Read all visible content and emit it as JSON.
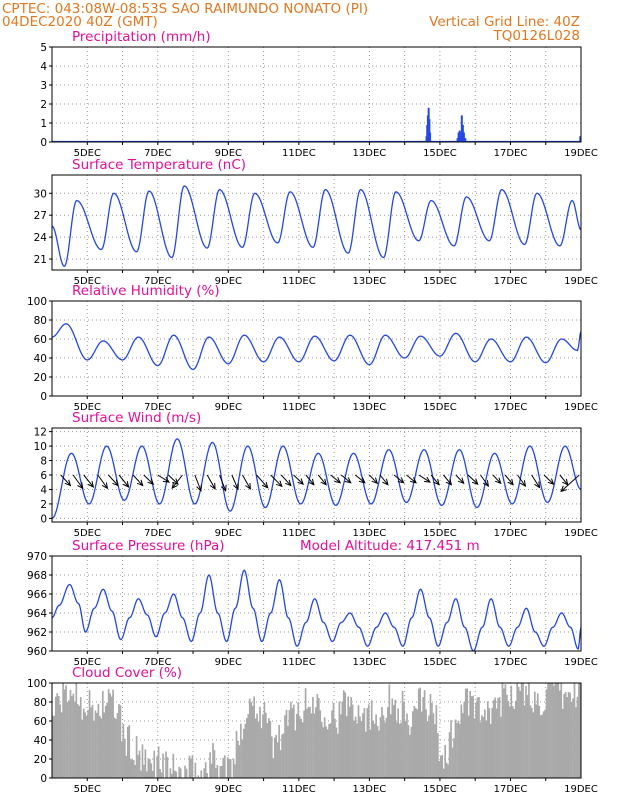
{
  "header": {
    "line1_left": "CPTEC:   043:08W-08:53S  SAO RAIMUNDO NONATO (PI)",
    "line2_left": "04DEC2020 40Z (GMT)",
    "line2_right": "Vertical Grid Line: 40Z",
    "line3_right": "TQ0126L028"
  },
  "colors": {
    "header": "#e07820",
    "title": "#e0109a",
    "series": "#2448e0",
    "cloud": "#a9a9a9",
    "grid": "#9a9a9a"
  },
  "chart_data": [
    {
      "id": "precip",
      "type": "bar",
      "title": "Precipitation (mm/h)",
      "ylim": [
        0,
        5
      ],
      "yticks": [
        "0",
        "1",
        "2",
        "3",
        "4",
        "5"
      ],
      "xticks": [
        "5DEC",
        "7DEC",
        "9DEC",
        "11DEC",
        "13DEC",
        "15DEC",
        "17DEC",
        "19DEC"
      ],
      "x_range_days": [
        4.0,
        19.0
      ],
      "points": [
        [
          14.62,
          0.3
        ],
        [
          14.64,
          0.9
        ],
        [
          14.66,
          1.4
        ],
        [
          14.68,
          1.8
        ],
        [
          14.7,
          1.2
        ],
        [
          14.72,
          0.5
        ],
        [
          15.5,
          0.2
        ],
        [
          15.53,
          0.5
        ],
        [
          15.56,
          0.6
        ],
        [
          15.59,
          0.5
        ],
        [
          15.62,
          1.4
        ],
        [
          15.65,
          0.9
        ],
        [
          15.68,
          0.5
        ],
        [
          15.72,
          0.2
        ],
        [
          18.98,
          0.3
        ]
      ]
    },
    {
      "id": "temp",
      "type": "line",
      "title": "Surface Temperature (nC)",
      "ylim": [
        19.5,
        32.5
      ],
      "yticks": [
        "21",
        "24",
        "27",
        "30"
      ],
      "ytick_values": [
        21,
        24,
        27,
        30
      ],
      "xticks": [
        "5DEC",
        "7DEC",
        "9DEC",
        "11DEC",
        "13DEC",
        "15DEC",
        "17DEC",
        "19DEC"
      ],
      "x_range_days": [
        4.0,
        19.0
      ],
      "minima": [
        [
          4.0,
          25.5
        ],
        [
          4.35,
          20.0
        ],
        [
          5.4,
          22.3
        ],
        [
          6.4,
          22.0
        ],
        [
          7.4,
          21.2
        ],
        [
          8.4,
          22.5
        ],
        [
          9.4,
          22.6
        ],
        [
          10.4,
          23.2
        ],
        [
          11.4,
          22.6
        ],
        [
          12.4,
          21.8
        ],
        [
          13.4,
          21.2
        ],
        [
          14.4,
          23.5
        ],
        [
          15.4,
          22.8
        ],
        [
          16.4,
          23.5
        ],
        [
          17.4,
          23.0
        ],
        [
          18.4,
          22.8
        ],
        [
          19.0,
          25.0
        ]
      ],
      "maxima": [
        [
          4.7,
          29.0
        ],
        [
          5.75,
          30.0
        ],
        [
          6.75,
          30.3
        ],
        [
          7.75,
          31.0
        ],
        [
          8.75,
          30.5
        ],
        [
          9.75,
          30.0
        ],
        [
          10.75,
          30.2
        ],
        [
          11.75,
          30.5
        ],
        [
          12.75,
          30.5
        ],
        [
          13.75,
          30.2
        ],
        [
          14.75,
          29.0
        ],
        [
          15.75,
          29.5
        ],
        [
          16.75,
          30.5
        ],
        [
          17.75,
          30.0
        ],
        [
          18.75,
          29.0
        ]
      ]
    },
    {
      "id": "rh",
      "type": "line",
      "title": "Relative Humidity (%)",
      "ylim": [
        0,
        100
      ],
      "yticks": [
        "0",
        "20",
        "40",
        "60",
        "80",
        "100"
      ],
      "ytick_values": [
        0,
        20,
        40,
        60,
        80,
        100
      ],
      "xticks": [
        "5DEC",
        "7DEC",
        "9DEC",
        "11DEC",
        "13DEC",
        "15DEC",
        "17DEC",
        "19DEC"
      ],
      "x_range_days": [
        4.0,
        19.0
      ],
      "maxima": [
        [
          4.4,
          76.0
        ],
        [
          5.45,
          58.0
        ],
        [
          6.45,
          62.0
        ],
        [
          7.45,
          64.0
        ],
        [
          8.45,
          62.0
        ],
        [
          9.45,
          64.0
        ],
        [
          10.45,
          62.0
        ],
        [
          11.45,
          63.0
        ],
        [
          12.45,
          64.0
        ],
        [
          13.45,
          64.0
        ],
        [
          14.45,
          63.0
        ],
        [
          15.45,
          66.0
        ],
        [
          16.45,
          60.0
        ],
        [
          17.45,
          62.0
        ],
        [
          18.45,
          60.0
        ],
        [
          19.0,
          68.0
        ]
      ],
      "minima": [
        [
          4.0,
          62.0
        ],
        [
          5.0,
          38.0
        ],
        [
          6.0,
          38.0
        ],
        [
          7.0,
          32.0
        ],
        [
          8.0,
          28.0
        ],
        [
          9.0,
          34.0
        ],
        [
          10.0,
          36.0
        ],
        [
          11.0,
          36.0
        ],
        [
          12.0,
          37.0
        ],
        [
          13.0,
          33.0
        ],
        [
          14.0,
          40.0
        ],
        [
          15.0,
          42.0
        ],
        [
          16.0,
          36.0
        ],
        [
          17.0,
          36.0
        ],
        [
          18.0,
          35.0
        ],
        [
          18.9,
          48.0
        ]
      ]
    },
    {
      "id": "wind",
      "type": "line",
      "title": "Surface Wind (m/s)",
      "ylim": [
        -0.5,
        12.5
      ],
      "yticks": [
        "0",
        "2",
        "4",
        "6",
        "8",
        "10",
        "12"
      ],
      "ytick_values": [
        0,
        2,
        4,
        6,
        8,
        10,
        12
      ],
      "xticks": [
        "5DEC",
        "7DEC",
        "9DEC",
        "11DEC",
        "13DEC",
        "15DEC",
        "17DEC",
        "19DEC"
      ],
      "x_range_days": [
        4.0,
        19.0
      ],
      "maxima": [
        [
          4.55,
          9.0
        ],
        [
          5.55,
          10.0
        ],
        [
          6.55,
          10.0
        ],
        [
          7.55,
          11.0
        ],
        [
          8.55,
          10.5
        ],
        [
          9.55,
          10.0
        ],
        [
          10.55,
          10.0
        ],
        [
          11.55,
          9.0
        ],
        [
          12.55,
          9.0
        ],
        [
          13.55,
          9.5
        ],
        [
          14.55,
          9.5
        ],
        [
          15.55,
          9.5
        ],
        [
          16.55,
          9.0
        ],
        [
          17.55,
          10.0
        ],
        [
          18.55,
          10.0
        ]
      ],
      "minima": [
        [
          4.0,
          0.0
        ],
        [
          5.05,
          2.0
        ],
        [
          6.05,
          2.5
        ],
        [
          7.05,
          2.0
        ],
        [
          8.05,
          2.0
        ],
        [
          9.05,
          1.0
        ],
        [
          10.05,
          1.5
        ],
        [
          11.05,
          2.0
        ],
        [
          12.05,
          1.8
        ],
        [
          13.05,
          2.0
        ],
        [
          14.05,
          2.2
        ],
        [
          15.05,
          1.8
        ],
        [
          16.05,
          1.5
        ],
        [
          17.05,
          2.0
        ],
        [
          18.05,
          2.2
        ],
        [
          19.0,
          4.0
        ]
      ],
      "vectors": [
        [
          4.25,
          2.1,
          0.3
        ],
        [
          4.6,
          2.1,
          0.5
        ],
        [
          4.9,
          2.1,
          0.4
        ],
        [
          5.3,
          2.1,
          0.5
        ],
        [
          5.6,
          2.1,
          0.3
        ],
        [
          5.9,
          2.1,
          0.4
        ],
        [
          6.3,
          2.1,
          0.3
        ],
        [
          6.6,
          2.1,
          0.2
        ],
        [
          7.0,
          2.2,
          0.1
        ],
        [
          7.3,
          2.1,
          0.2
        ],
        [
          7.7,
          1.0,
          0.5
        ],
        [
          8.05,
          1.9,
          0.6
        ],
        [
          8.4,
          2.0,
          0.5
        ],
        [
          8.75,
          1.9,
          0.6
        ],
        [
          9.1,
          1.9,
          0.5
        ],
        [
          9.4,
          2.0,
          0.5
        ],
        [
          9.8,
          2.2,
          0.5
        ],
        [
          10.2,
          2.2,
          0.4
        ],
        [
          10.5,
          2.1,
          0.3
        ],
        [
          10.85,
          2.1,
          0.2
        ],
        [
          11.2,
          2.0,
          0.2
        ],
        [
          11.55,
          2.0,
          0.2
        ],
        [
          11.9,
          2.1,
          0.1
        ],
        [
          12.2,
          2.1,
          0.1
        ],
        [
          12.6,
          2.1,
          0.1
        ],
        [
          13.0,
          2.0,
          0.1
        ],
        [
          13.3,
          2.0,
          0.2
        ],
        [
          13.7,
          2.1,
          0.1
        ],
        [
          14.05,
          2.1,
          0.1
        ],
        [
          14.4,
          2.2,
          0.1
        ],
        [
          14.75,
          2.0,
          0.2
        ],
        [
          15.1,
          2.0,
          0.2
        ],
        [
          15.45,
          2.0,
          0.1
        ],
        [
          15.8,
          2.1,
          0.2
        ],
        [
          16.15,
          2.0,
          0.3
        ],
        [
          16.5,
          2.0,
          0.1
        ],
        [
          16.85,
          2.0,
          0.2
        ],
        [
          17.2,
          2.0,
          0.3
        ],
        [
          17.6,
          2.0,
          0.4
        ],
        [
          17.95,
          2.1,
          0.2
        ],
        [
          18.4,
          2.0,
          0.2
        ],
        [
          18.95,
          0.3,
          1.2
        ]
      ]
    },
    {
      "id": "pressure",
      "type": "line",
      "title": "Surface Pressure (hPa)",
      "annotation": "Model Altitude: 417.451 m",
      "ylim": [
        960,
        970
      ],
      "yticks": [
        "960",
        "962",
        "964",
        "966",
        "968",
        "970"
      ],
      "ytick_values": [
        960,
        962,
        964,
        966,
        968,
        970
      ],
      "xticks": [
        "5DEC",
        "7DEC",
        "9DEC",
        "11DEC",
        "13DEC",
        "15DEC",
        "17DEC",
        "19DEC"
      ],
      "x_range_days": [
        4.0,
        19.0
      ],
      "points": [
        [
          4.0,
          963.5
        ],
        [
          4.2,
          964.8
        ],
        [
          4.5,
          967.0
        ],
        [
          4.75,
          965.0
        ],
        [
          4.95,
          962.0
        ],
        [
          5.2,
          964.5
        ],
        [
          5.45,
          966.5
        ],
        [
          5.7,
          964.2
        ],
        [
          5.95,
          961.2
        ],
        [
          6.2,
          963.5
        ],
        [
          6.45,
          965.5
        ],
        [
          6.7,
          963.8
        ],
        [
          6.95,
          961.5
        ],
        [
          7.2,
          964.0
        ],
        [
          7.45,
          966.0
        ],
        [
          7.7,
          963.5
        ],
        [
          7.95,
          961.0
        ],
        [
          8.2,
          964.0
        ],
        [
          8.45,
          968.0
        ],
        [
          8.7,
          964.0
        ],
        [
          8.95,
          961.0
        ],
        [
          9.2,
          964.5
        ],
        [
          9.45,
          968.5
        ],
        [
          9.7,
          964.5
        ],
        [
          9.95,
          961.0
        ],
        [
          10.2,
          964.0
        ],
        [
          10.45,
          967.5
        ],
        [
          10.7,
          963.5
        ],
        [
          10.95,
          960.5
        ],
        [
          11.2,
          963.0
        ],
        [
          11.45,
          965.5
        ],
        [
          11.7,
          963.0
        ],
        [
          11.95,
          961.0
        ],
        [
          12.2,
          963.0
        ],
        [
          12.45,
          964.0
        ],
        [
          12.7,
          962.5
        ],
        [
          12.95,
          960.5
        ],
        [
          13.2,
          962.5
        ],
        [
          13.45,
          964.0
        ],
        [
          13.7,
          962.5
        ],
        [
          13.95,
          960.5
        ],
        [
          14.2,
          963.5
        ],
        [
          14.45,
          966.5
        ],
        [
          14.7,
          963.5
        ],
        [
          14.95,
          960.5
        ],
        [
          15.2,
          963.0
        ],
        [
          15.45,
          965.5
        ],
        [
          15.7,
          962.5
        ],
        [
          15.95,
          960.0
        ],
        [
          16.2,
          962.5
        ],
        [
          16.45,
          965.5
        ],
        [
          16.7,
          962.5
        ],
        [
          16.95,
          960.5
        ],
        [
          17.2,
          962.5
        ],
        [
          17.45,
          964.5
        ],
        [
          17.7,
          962.0
        ],
        [
          17.95,
          960.5
        ],
        [
          18.2,
          962.5
        ],
        [
          18.45,
          964.0
        ],
        [
          18.7,
          962.5
        ],
        [
          18.92,
          960.2
        ],
        [
          19.0,
          962.5
        ]
      ]
    },
    {
      "id": "cloud",
      "type": "bar",
      "title": "Cloud Cover (%)",
      "ylim": [
        0,
        100
      ],
      "yticks": [
        "0",
        "20",
        "40",
        "60",
        "80",
        "100"
      ],
      "ytick_values": [
        0,
        20,
        40,
        60,
        80,
        100
      ],
      "xticks": [
        "5DEC",
        "7DEC",
        "9DEC",
        "11DEC",
        "13DEC",
        "15DEC",
        "17DEC",
        "19DEC"
      ],
      "x_range_days": [
        4.0,
        19.0
      ],
      "envelope": [
        [
          4.0,
          70
        ],
        [
          4.3,
          85
        ],
        [
          4.6,
          92
        ],
        [
          4.9,
          80
        ],
        [
          5.2,
          70
        ],
        [
          5.5,
          80
        ],
        [
          5.8,
          75
        ],
        [
          6.1,
          40
        ],
        [
          6.4,
          25
        ],
        [
          6.7,
          10
        ],
        [
          7.0,
          20
        ],
        [
          7.3,
          8
        ],
        [
          7.6,
          3
        ],
        [
          7.9,
          5
        ],
        [
          8.2,
          2
        ],
        [
          8.5,
          20
        ],
        [
          8.8,
          15
        ],
        [
          9.1,
          10
        ],
        [
          9.4,
          60
        ],
        [
          9.7,
          80
        ],
        [
          10.0,
          70
        ],
        [
          10.3,
          35
        ],
        [
          10.6,
          55
        ],
        [
          10.9,
          70
        ],
        [
          11.2,
          75
        ],
        [
          11.5,
          80
        ],
        [
          11.8,
          70
        ],
        [
          12.1,
          65
        ],
        [
          12.4,
          80
        ],
        [
          12.7,
          75
        ],
        [
          13.0,
          65
        ],
        [
          13.3,
          70
        ],
        [
          13.6,
          80
        ],
        [
          13.9,
          75
        ],
        [
          14.2,
          55
        ],
        [
          14.5,
          85
        ],
        [
          14.8,
          70
        ],
        [
          15.1,
          20
        ],
        [
          15.4,
          50
        ],
        [
          15.7,
          80
        ],
        [
          16.0,
          75
        ],
        [
          16.3,
          60
        ],
        [
          16.6,
          80
        ],
        [
          16.9,
          90
        ],
        [
          17.2,
          92
        ],
        [
          17.5,
          85
        ],
        [
          17.8,
          80
        ],
        [
          18.1,
          90
        ],
        [
          18.4,
          88
        ],
        [
          18.7,
          85
        ],
        [
          19.0,
          92
        ]
      ]
    }
  ]
}
